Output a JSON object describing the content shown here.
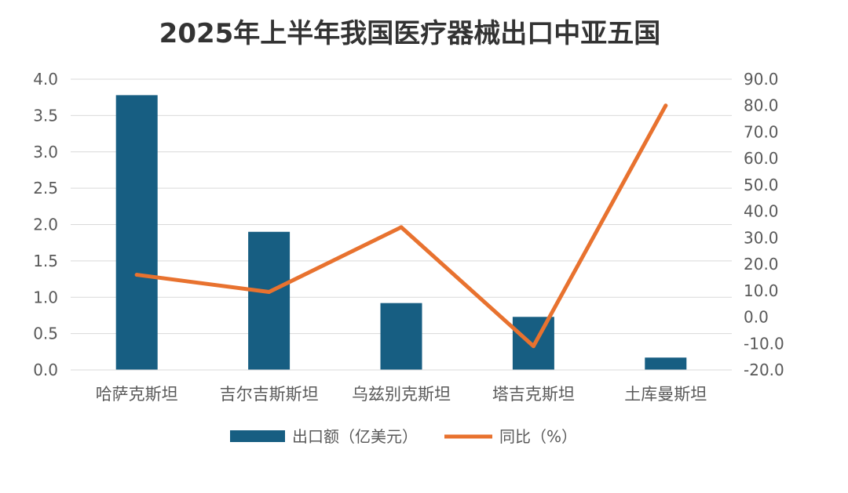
{
  "chart_data": {
    "type": "bar",
    "title": "2025年上半年我国医疗器械出口中亚五国",
    "categories": [
      "哈萨克斯坦",
      "吉尔吉斯斯坦",
      "乌兹别克斯坦",
      "塔吉克斯坦",
      "土库曼斯坦"
    ],
    "series": [
      {
        "name": "出口额（亿美元）",
        "type": "bar",
        "axis": "left",
        "color": "#175E82",
        "values": [
          3.78,
          1.9,
          0.92,
          0.73,
          0.17
        ]
      },
      {
        "name": "同比（%）",
        "type": "line",
        "axis": "right",
        "color": "#E8722F",
        "values": [
          16.0,
          9.5,
          34.0,
          -11.0,
          80.0
        ]
      }
    ],
    "y_left": {
      "min": 0,
      "max": 4,
      "ticks": [
        "0.0",
        "0.5",
        "1.0",
        "1.5",
        "2.0",
        "2.5",
        "3.0",
        "3.5",
        "4.0"
      ]
    },
    "y_right": {
      "min": -20,
      "max": 90,
      "ticks": [
        "-20.0",
        "-10.0",
        "0.0",
        "10.0",
        "20.0",
        "30.0",
        "40.0",
        "50.0",
        "60.0",
        "70.0",
        "80.0",
        "90.0"
      ]
    },
    "grid": true,
    "legend_position": "bottom"
  }
}
